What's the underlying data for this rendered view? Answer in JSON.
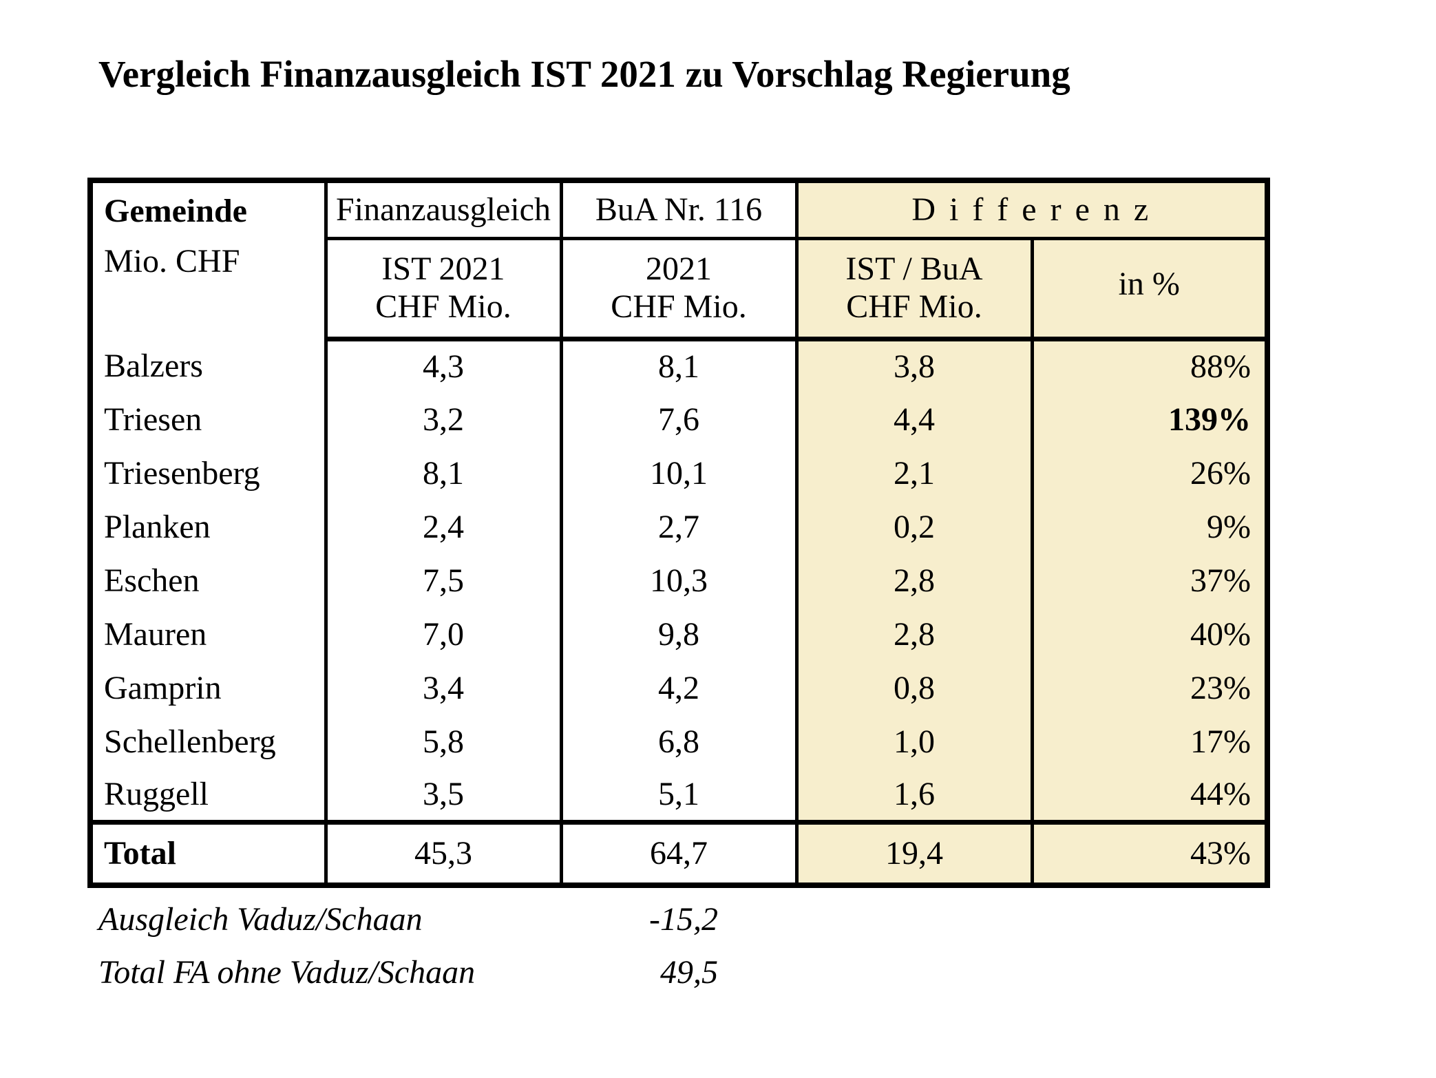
{
  "title": "Vergleich Finanzausgleich IST 2021 zu Vorschlag Regierung",
  "table": {
    "header": {
      "gemeinde": "Gemeinde",
      "unit": "Mio. CHF",
      "fa": "Finanzausgleich",
      "fa_line1": "IST 2021",
      "fa_line2": "CHF Mio.",
      "bua": "BuA Nr. 116",
      "bua_line1": "2021",
      "bua_line2": "CHF Mio.",
      "diff": "D i f f e r e n z",
      "diff_abs_line1": "IST / BuA",
      "diff_abs_line2": "CHF Mio.",
      "diff_pct": "in %"
    },
    "rows": [
      {
        "gemeinde": "Balzers",
        "ist": "4,3",
        "bua": "8,1",
        "diff": "3,8",
        "pct": "88%"
      },
      {
        "gemeinde": "Triesen",
        "ist": "3,2",
        "bua": "7,6",
        "diff": "4,4",
        "pct": "139%"
      },
      {
        "gemeinde": "Triesenberg",
        "ist": "8,1",
        "bua": "10,1",
        "diff": "2,1",
        "pct": "26%"
      },
      {
        "gemeinde": "Planken",
        "ist": "2,4",
        "bua": "2,7",
        "diff": "0,2",
        "pct": "9%"
      },
      {
        "gemeinde": "Eschen",
        "ist": "7,5",
        "bua": "10,3",
        "diff": "2,8",
        "pct": "37%"
      },
      {
        "gemeinde": "Mauren",
        "ist": "7,0",
        "bua": "9,8",
        "diff": "2,8",
        "pct": "40%"
      },
      {
        "gemeinde": "Gamprin",
        "ist": "3,4",
        "bua": "4,2",
        "diff": "0,8",
        "pct": "23%"
      },
      {
        "gemeinde": "Schellenberg",
        "ist": "5,8",
        "bua": "6,8",
        "diff": "1,0",
        "pct": "17%"
      },
      {
        "gemeinde": "Ruggell",
        "ist": "3,5",
        "bua": "5,1",
        "diff": "1,6",
        "pct": "44%"
      }
    ],
    "total": {
      "label": "Total",
      "ist": "45,3",
      "bua": "64,7",
      "diff": "19,4",
      "pct": "43%"
    }
  },
  "footnotes": [
    {
      "label": "Ausgleich Vaduz/Schaan",
      "value": "-15,2"
    },
    {
      "label": "Total FA ohne Vaduz/Schaan",
      "value": "49,5"
    }
  ],
  "colors": {
    "highlight_bg": "#F7EECD",
    "border": "#000000",
    "text": "#000000",
    "page_bg": "#FFFFFF"
  }
}
